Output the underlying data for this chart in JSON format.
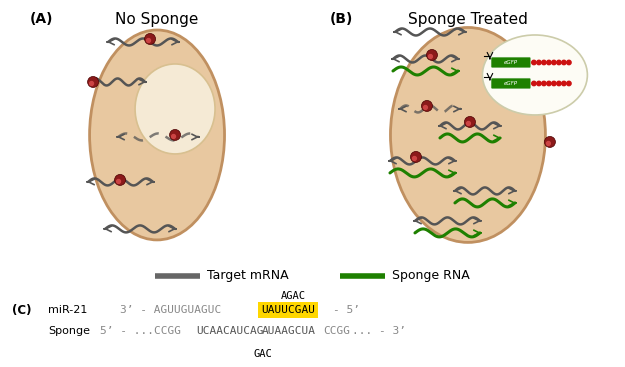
{
  "title_A": "No Sponge",
  "title_B": "Sponge Treated",
  "label_A": "(A)",
  "label_B": "(B)",
  "cell_color": "#E8C8A0",
  "cell_edge_color": "#C09060",
  "nucleus_A_color": "#F5EAD5",
  "nucleus_B_color": "#F8F6E8",
  "background_color": "#FFFFFF",
  "mrna_color": "#555555",
  "sponge_color": "#1E8000",
  "mirna_color": "#8B1A1A",
  "highlight_color": "#FFD700",
  "legend_mrna_color": "#666666",
  "legend_sponge_color": "#1E8000",
  "legend_target": "Target mRNA",
  "legend_sponge": "Sponge RNA"
}
